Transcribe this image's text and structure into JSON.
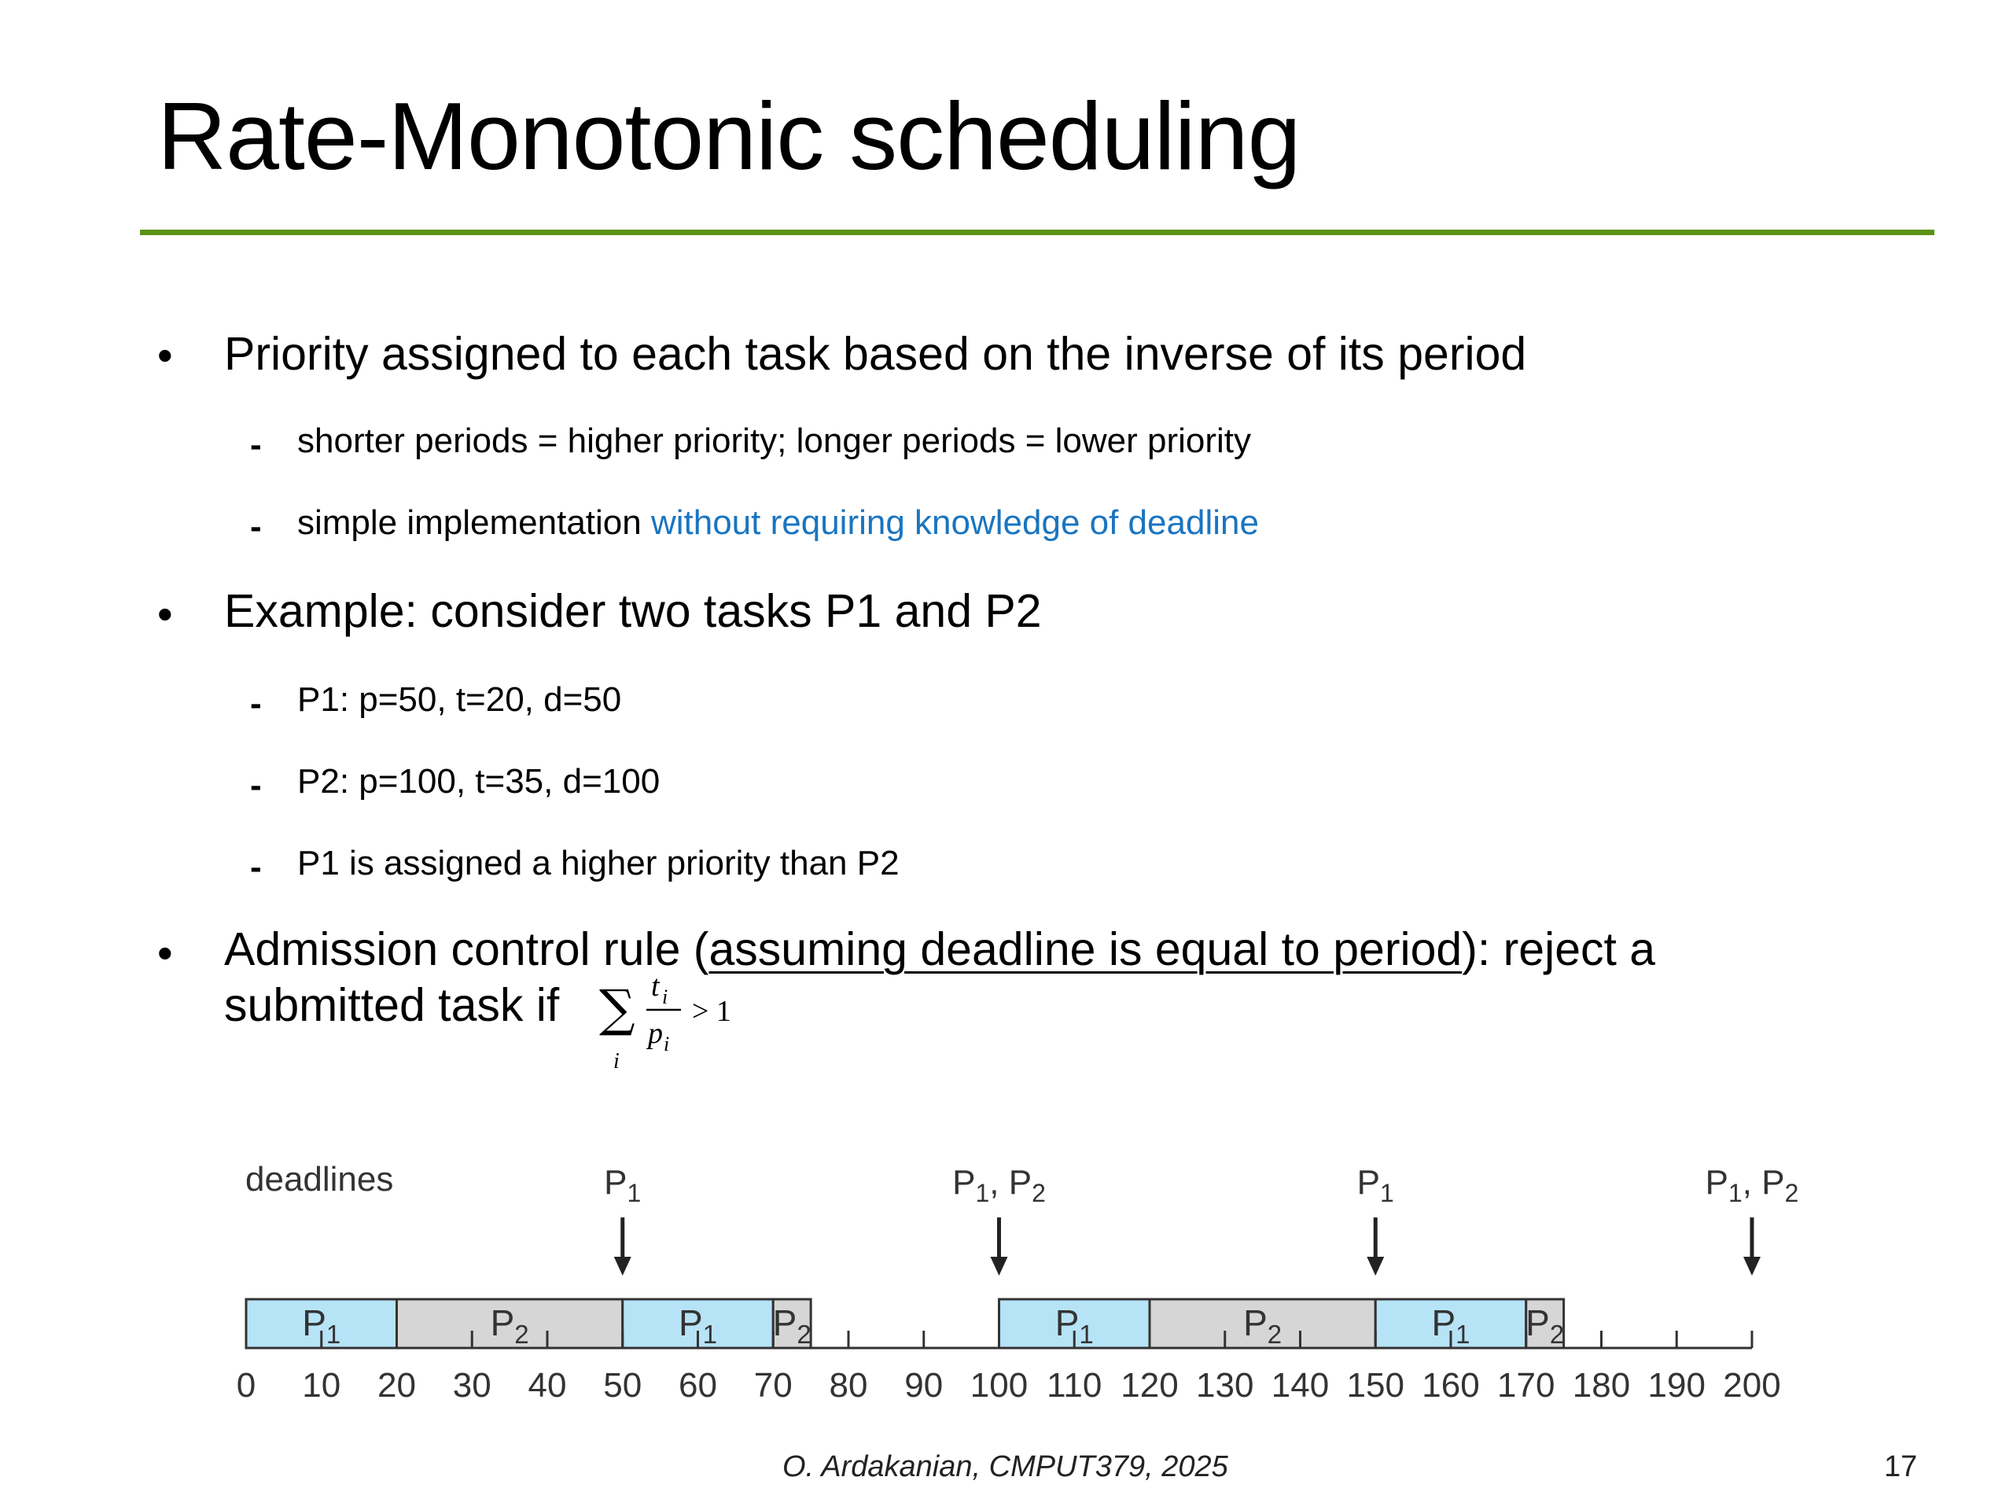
{
  "slide": {
    "title": "Rate-Monotonic scheduling",
    "accent_color": "#5a9217",
    "link_color": "#1a75c0"
  },
  "bullets": [
    {
      "text": "Priority assigned to each task based on the inverse of its period",
      "sub": [
        {
          "text": "shorter periods = higher priority; longer periods = lower priority"
        },
        {
          "text": "simple implementation ",
          "highlight": "without requiring knowledge of deadline"
        }
      ]
    },
    {
      "text": "Example: consider two tasks P1 and P2",
      "sub": [
        {
          "text": "P1: p=50, t=20, d=50"
        },
        {
          "text": "P2: p=100, t=35, d=100"
        },
        {
          "text": "P1 is assigned a higher priority than P2"
        }
      ]
    },
    {
      "text_before": "Admission control rule (",
      "underlined": "assuming deadline is equal to period",
      "text_after": "): reject a",
      "line2": "submitted task if"
    }
  ],
  "formula": {
    "sum": "∑",
    "numerator": "t",
    "denominator": "p",
    "subscript": "i",
    "relation": "> 1"
  },
  "timeline": {
    "deadlines_label": "deadlines",
    "deadline_markers": [
      {
        "t": 50,
        "tasks": [
          "P1"
        ]
      },
      {
        "t": 100,
        "tasks": [
          "P1",
          "P2"
        ]
      },
      {
        "t": 150,
        "tasks": [
          "P1"
        ]
      },
      {
        "t": 200,
        "tasks": [
          "P1",
          "P2"
        ]
      }
    ],
    "segments": [
      {
        "task": "P1",
        "start": 0,
        "end": 20
      },
      {
        "task": "P2",
        "start": 20,
        "end": 50
      },
      {
        "task": "P1",
        "start": 50,
        "end": 70
      },
      {
        "task": "P2",
        "start": 70,
        "end": 75
      },
      {
        "task": "P1",
        "start": 100,
        "end": 120
      },
      {
        "task": "P2",
        "start": 120,
        "end": 150
      },
      {
        "task": "P1",
        "start": 150,
        "end": 170
      },
      {
        "task": "P2",
        "start": 170,
        "end": 175
      }
    ],
    "ticks": [
      0,
      10,
      20,
      30,
      40,
      50,
      60,
      70,
      80,
      90,
      100,
      110,
      120,
      130,
      140,
      150,
      160,
      170,
      180,
      190,
      200
    ],
    "colors": {
      "P1": "#b7e3f7",
      "P2": "#d6d6d6"
    }
  },
  "footer": {
    "credit": "O. Ardakanian, CMPUT379, 2025",
    "page": "17"
  }
}
